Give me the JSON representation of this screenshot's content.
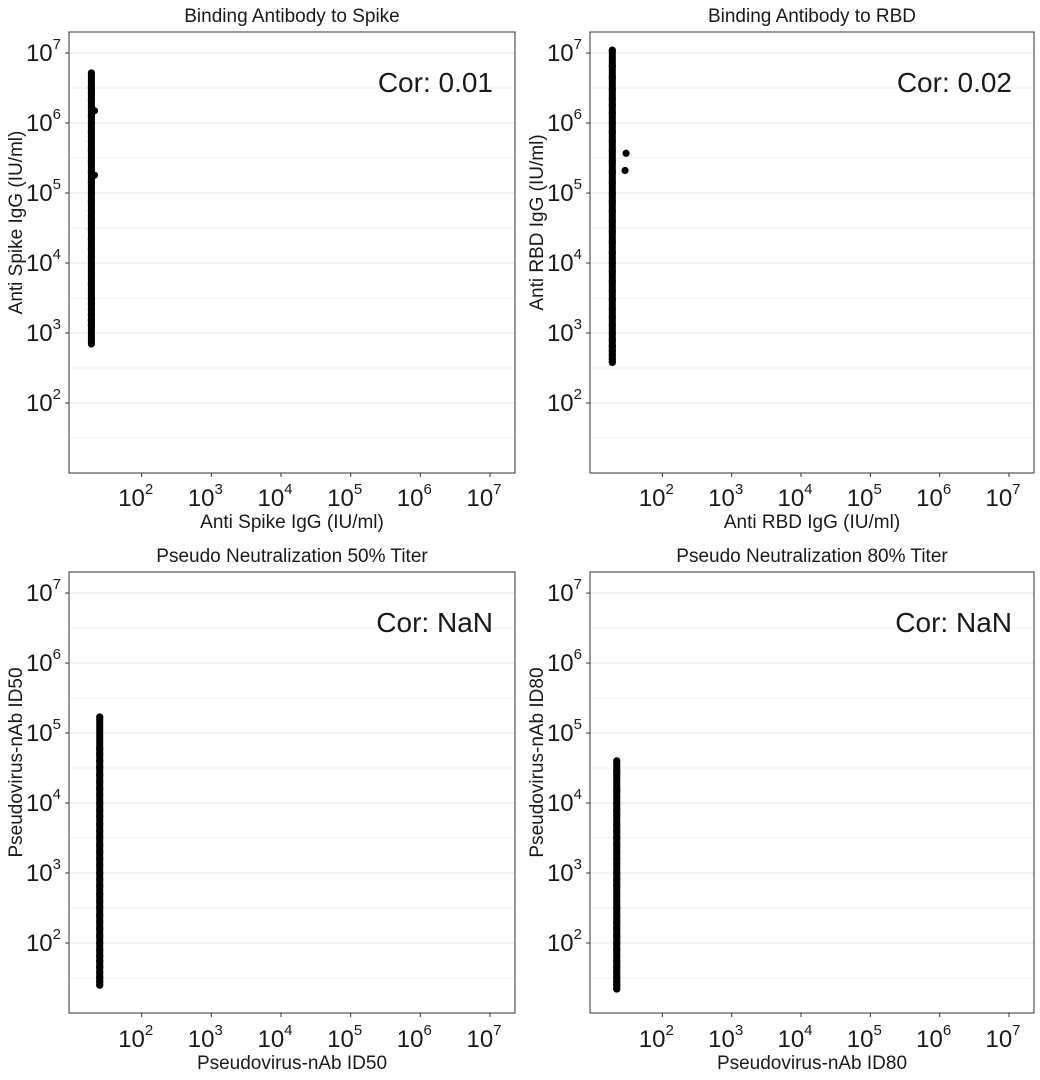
{
  "chart_data": [
    {
      "type": "scatter",
      "title": "Binding Antibody to Spike",
      "xlabel": "Anti Spike IgG (IU/ml)",
      "ylabel": "Anti Spike IgG (IU/ml)",
      "annotation": "Cor: 0.01",
      "x_scale": "log10",
      "y_scale": "log10",
      "xlim": [
        10,
        10000000
      ],
      "ylim": [
        10,
        20000000
      ],
      "x_ticks": [
        {
          "value": 100,
          "exp": "2"
        },
        {
          "value": 1000,
          "exp": "3"
        },
        {
          "value": 10000,
          "exp": "4"
        },
        {
          "value": 100000,
          "exp": "5"
        },
        {
          "value": 1000000,
          "exp": "6"
        },
        {
          "value": 10000000,
          "exp": "7"
        }
      ],
      "y_ticks": [
        {
          "value": 100,
          "exp": "2"
        },
        {
          "value": 1000,
          "exp": "3"
        },
        {
          "value": 10000,
          "exp": "4"
        },
        {
          "value": 100000,
          "exp": "5"
        },
        {
          "value": 1000000,
          "exp": "6"
        },
        {
          "value": 10000000,
          "exp": "7"
        }
      ],
      "grid": true,
      "series": [
        {
          "points": [
            [
              19,
              700
            ],
            [
              19,
              1300
            ],
            [
              19,
              1500
            ],
            [
              19,
              1800
            ],
            [
              19,
              2200
            ],
            [
              19,
              2600
            ],
            [
              19,
              3000
            ],
            [
              19,
              4000
            ],
            [
              19,
              5000
            ],
            [
              19,
              7000
            ],
            [
              19,
              9000
            ],
            [
              19,
              12000
            ],
            [
              19,
              16000
            ],
            [
              19,
              22000
            ],
            [
              19,
              30000
            ],
            [
              19,
              40000
            ],
            [
              19,
              55000
            ],
            [
              19,
              75000
            ],
            [
              19,
              100000
            ],
            [
              19,
              140000
            ],
            [
              19,
              200000
            ],
            [
              19,
              280000
            ],
            [
              19,
              400000
            ],
            [
              19,
              550000
            ],
            [
              19,
              750000
            ],
            [
              19,
              1000000
            ],
            [
              19,
              1300000
            ],
            [
              19,
              1700000
            ],
            [
              19,
              2200000
            ],
            [
              19,
              2700000
            ],
            [
              19,
              3200000
            ],
            [
              19,
              5200000
            ],
            [
              21,
              1500000
            ],
            [
              21,
              180000
            ]
          ]
        }
      ]
    },
    {
      "type": "scatter",
      "title": "Binding Antibody to RBD",
      "xlabel": "Anti RBD IgG (IU/ml)",
      "ylabel": "Anti RBD IgG (IU/ml)",
      "annotation": "Cor: 0.02",
      "x_scale": "log10",
      "y_scale": "log10",
      "xlim": [
        10,
        10000000
      ],
      "ylim": [
        10,
        20000000
      ],
      "x_ticks": [
        {
          "value": 100,
          "exp": "2"
        },
        {
          "value": 1000,
          "exp": "3"
        },
        {
          "value": 10000,
          "exp": "4"
        },
        {
          "value": 100000,
          "exp": "5"
        },
        {
          "value": 1000000,
          "exp": "6"
        },
        {
          "value": 10000000,
          "exp": "7"
        }
      ],
      "y_ticks": [
        {
          "value": 100,
          "exp": "2"
        },
        {
          "value": 1000,
          "exp": "3"
        },
        {
          "value": 10000,
          "exp": "4"
        },
        {
          "value": 100000,
          "exp": "5"
        },
        {
          "value": 1000000,
          "exp": "6"
        },
        {
          "value": 10000000,
          "exp": "7"
        }
      ],
      "grid": true,
      "series": [
        {
          "points": [
            [
              19,
              380
            ],
            [
              19,
              420
            ],
            [
              19,
              480
            ],
            [
              19,
              550
            ],
            [
              19,
              650
            ],
            [
              19,
              800
            ],
            [
              19,
              1000
            ],
            [
              19,
              1300
            ],
            [
              19,
              1700
            ],
            [
              19,
              2200
            ],
            [
              19,
              3000
            ],
            [
              19,
              4000
            ],
            [
              19,
              5500
            ],
            [
              19,
              7500
            ],
            [
              19,
              10000
            ],
            [
              19,
              14000
            ],
            [
              19,
              20000
            ],
            [
              19,
              28000
            ],
            [
              19,
              40000
            ],
            [
              19,
              55000
            ],
            [
              19,
              75000
            ],
            [
              19,
              100000
            ],
            [
              19,
              140000
            ],
            [
              19,
              200000
            ],
            [
              19,
              280000
            ],
            [
              19,
              400000
            ],
            [
              19,
              550000
            ],
            [
              19,
              750000
            ],
            [
              19,
              1000000
            ],
            [
              19,
              1400000
            ],
            [
              19,
              1800000
            ],
            [
              19,
              2200000
            ],
            [
              19,
              3000000
            ],
            [
              19,
              4500000
            ],
            [
              19,
              6500000
            ],
            [
              19,
              11000000
            ],
            [
              30,
              370000
            ],
            [
              29,
              210000
            ]
          ]
        }
      ]
    },
    {
      "type": "scatter",
      "title": "Pseudo Neutralization 50% Titer",
      "xlabel": "Pseudovirus-nAb ID50",
      "ylabel": "Pseudovirus-nAb ID50",
      "annotation": "Cor: NaN",
      "x_scale": "log10",
      "y_scale": "log10",
      "xlim": [
        10,
        10000000
      ],
      "ylim": [
        10,
        20000000
      ],
      "x_ticks": [
        {
          "value": 100,
          "exp": "2"
        },
        {
          "value": 1000,
          "exp": "3"
        },
        {
          "value": 10000,
          "exp": "4"
        },
        {
          "value": 100000,
          "exp": "5"
        },
        {
          "value": 1000000,
          "exp": "6"
        },
        {
          "value": 10000000,
          "exp": "7"
        }
      ],
      "y_ticks": [
        {
          "value": 100,
          "exp": "2"
        },
        {
          "value": 1000,
          "exp": "3"
        },
        {
          "value": 10000,
          "exp": "4"
        },
        {
          "value": 100000,
          "exp": "5"
        },
        {
          "value": 1000000,
          "exp": "6"
        },
        {
          "value": 10000000,
          "exp": "7"
        }
      ],
      "grid": true,
      "series": [
        {
          "points": [
            [
              25,
              25
            ],
            [
              25,
              28
            ],
            [
              25,
              32
            ],
            [
              25,
              38
            ],
            [
              25,
              45
            ],
            [
              25,
              55
            ],
            [
              25,
              65
            ],
            [
              25,
              80
            ],
            [
              25,
              100
            ],
            [
              25,
              125
            ],
            [
              25,
              160
            ],
            [
              25,
              200
            ],
            [
              25,
              250
            ],
            [
              25,
              320
            ],
            [
              25,
              400
            ],
            [
              25,
              500
            ],
            [
              25,
              650
            ],
            [
              25,
              800
            ],
            [
              25,
              1000
            ],
            [
              25,
              1300
            ],
            [
              25,
              1600
            ],
            [
              25,
              2000
            ],
            [
              25,
              2500
            ],
            [
              25,
              3200
            ],
            [
              25,
              4000
            ],
            [
              25,
              5000
            ],
            [
              25,
              6500
            ],
            [
              25,
              8000
            ],
            [
              25,
              10000
            ],
            [
              25,
              13000
            ],
            [
              25,
              16000
            ],
            [
              25,
              20000
            ],
            [
              25,
              25000
            ],
            [
              25,
              32000
            ],
            [
              25,
              40000
            ],
            [
              25,
              50000
            ],
            [
              25,
              60000
            ],
            [
              25,
              170000
            ]
          ]
        }
      ]
    },
    {
      "type": "scatter",
      "title": "Pseudo Neutralization 80% Titer",
      "xlabel": "Pseudovirus-nAb ID80",
      "ylabel": "Pseudovirus-nAb ID80",
      "annotation": "Cor: NaN",
      "x_scale": "log10",
      "y_scale": "log10",
      "xlim": [
        10,
        10000000
      ],
      "ylim": [
        10,
        20000000
      ],
      "x_ticks": [
        {
          "value": 100,
          "exp": "2"
        },
        {
          "value": 1000,
          "exp": "3"
        },
        {
          "value": 10000,
          "exp": "4"
        },
        {
          "value": 100000,
          "exp": "5"
        },
        {
          "value": 1000000,
          "exp": "6"
        },
        {
          "value": 10000000,
          "exp": "7"
        }
      ],
      "y_ticks": [
        {
          "value": 100,
          "exp": "2"
        },
        {
          "value": 1000,
          "exp": "3"
        },
        {
          "value": 10000,
          "exp": "4"
        },
        {
          "value": 100000,
          "exp": "5"
        },
        {
          "value": 1000000,
          "exp": "6"
        },
        {
          "value": 10000000,
          "exp": "7"
        }
      ],
      "grid": true,
      "series": [
        {
          "points": [
            [
              22,
              22
            ],
            [
              22,
              25
            ],
            [
              22,
              28
            ],
            [
              22,
              32
            ],
            [
              22,
              38
            ],
            [
              22,
              45
            ],
            [
              22,
              55
            ],
            [
              22,
              65
            ],
            [
              22,
              80
            ],
            [
              22,
              100
            ],
            [
              22,
              125
            ],
            [
              22,
              160
            ],
            [
              22,
              200
            ],
            [
              22,
              250
            ],
            [
              22,
              320
            ],
            [
              22,
              400
            ],
            [
              22,
              500
            ],
            [
              22,
              650
            ],
            [
              22,
              800
            ],
            [
              22,
              1000
            ],
            [
              22,
              1300
            ],
            [
              22,
              1600
            ],
            [
              22,
              2000
            ],
            [
              22,
              2500
            ],
            [
              22,
              3200
            ],
            [
              22,
              4000
            ],
            [
              22,
              5000
            ],
            [
              22,
              6500
            ],
            [
              22,
              8000
            ],
            [
              22,
              10000
            ],
            [
              22,
              12000
            ],
            [
              22,
              15000
            ],
            [
              22,
              24000
            ],
            [
              22,
              28000
            ],
            [
              22,
              40000
            ]
          ]
        }
      ]
    }
  ]
}
